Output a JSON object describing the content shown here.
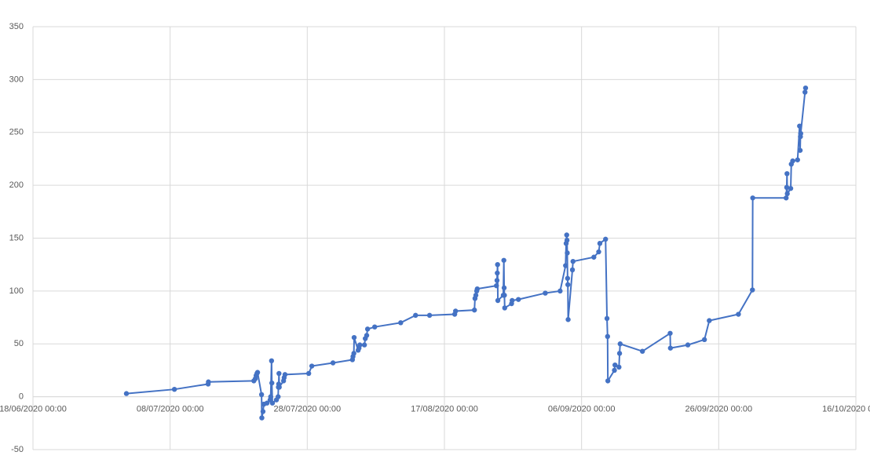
{
  "chart_data": {
    "type": "line",
    "x": [
      "01/07/2020 15:00",
      "08/07/2020 15:00",
      "13/07/2020 13:00",
      "13/07/2020 14:00",
      "20/07/2020 05:00",
      "20/07/2020 10:00",
      "20/07/2020 13:00",
      "20/07/2020 16:00",
      "20/07/2020 18:00",
      "21/07/2020 08:00",
      "21/07/2020 09:00",
      "21/07/2020 13:00",
      "21/07/2020 16:00",
      "22/07/2020 03:00",
      "22/07/2020 14:00",
      "22/07/2020 16:00",
      "22/07/2020 19:00",
      "22/07/2020 20:00",
      "22/07/2020 22:00",
      "23/07/2020 12:00",
      "23/07/2020 18:00",
      "23/07/2020 19:00",
      "23/07/2020 20:00",
      "23/07/2020 21:00",
      "23/07/2020 22:00",
      "24/07/2020 13:00",
      "24/07/2020 15:00",
      "24/07/2020 18:00",
      "28/07/2020 05:00",
      "28/07/2020 16:00",
      "31/07/2020 18:00",
      "03/08/2020 14:00",
      "03/08/2020 16:00",
      "03/08/2020 19:00",
      "03/08/2020 20:00",
      "04/08/2020 10:00",
      "04/08/2020 13:00",
      "04/08/2020 16:00",
      "05/08/2020 08:00",
      "05/08/2020 11:00",
      "05/08/2020 16:00",
      "05/08/2020 19:00",
      "06/08/2020 20:00",
      "10/08/2020 15:00",
      "12/08/2020 19:00",
      "14/08/2020 20:00",
      "18/08/2020 12:00",
      "18/08/2020 15:00",
      "21/08/2020 09:00",
      "21/08/2020 11:00",
      "21/08/2020 14:00",
      "21/08/2020 17:00",
      "21/08/2020 19:00",
      "24/08/2020 14:00",
      "24/08/2020 16:00",
      "24/08/2020 17:00",
      "24/08/2020 18:00",
      "24/08/2020 19:00",
      "25/08/2020 14:00",
      "25/08/2020 16:00",
      "25/08/2020 17:00",
      "25/08/2020 18:00",
      "25/08/2020 19:00",
      "26/08/2020 19:00",
      "26/08/2020 21:00",
      "27/08/2020 19:00",
      "31/08/2020 17:00",
      "02/09/2020 21:00",
      "03/09/2020 16:00",
      "03/09/2020 18:00",
      "03/09/2020 20:00",
      "03/09/2020 21:00",
      "03/09/2020 22:00",
      "03/09/2020 23:00",
      "04/09/2020 00:00",
      "04/09/2020 01:00",
      "04/09/2020 16:00",
      "04/09/2020 18:00",
      "07/09/2020 19:00",
      "08/09/2020 12:00",
      "08/09/2020 16:00",
      "09/09/2020 12:00",
      "09/09/2020 17:00",
      "09/09/2020 19:00",
      "09/09/2020 20:00",
      "10/09/2020 19:00",
      "10/09/2020 21:00",
      "11/09/2020 11:00",
      "11/09/2020 13:00",
      "11/09/2020 15:00",
      "14/09/2020 21:00",
      "18/09/2020 22:00",
      "18/09/2020 23:00",
      "21/09/2020 12:00",
      "23/09/2020 22:00",
      "24/09/2020 15:00",
      "28/09/2020 21:00",
      "30/09/2020 22:00",
      "30/09/2020 23:00",
      "05/10/2020 20:00",
      "05/10/2020 22:00",
      "05/10/2020 23:00",
      "06/10/2020 00:00",
      "06/10/2020 12:00",
      "06/10/2020 14:00",
      "06/10/2020 19:00",
      "07/10/2020 12:00",
      "07/10/2020 19:00",
      "07/10/2020 21:00",
      "07/10/2020 22:00",
      "07/10/2020 23:00",
      "08/10/2020 14:00",
      "08/10/2020 16:00"
    ],
    "series": [
      {
        "color": "#4472c4",
        "values": [
          3,
          7,
          12,
          14,
          15,
          17,
          20,
          22,
          23,
          2,
          -20,
          -14,
          -7,
          -6,
          -3,
          0,
          34,
          13,
          -6,
          -3,
          0,
          9,
          12,
          22,
          9,
          15,
          18,
          21,
          22,
          29,
          32,
          35,
          38,
          41,
          56,
          44,
          46,
          49,
          49,
          55,
          58,
          64,
          66,
          70,
          77,
          77,
          78,
          81,
          82,
          93,
          96,
          100,
          102,
          105,
          110,
          117,
          125,
          91,
          96,
          129,
          103,
          96,
          84,
          88,
          91,
          92,
          98,
          100,
          124,
          145,
          153,
          148,
          136,
          112,
          106,
          73,
          120,
          128,
          132,
          137,
          145,
          149,
          74,
          57,
          15,
          25,
          30,
          28,
          41,
          50,
          43,
          60,
          46,
          49,
          54,
          72,
          78,
          101,
          188,
          188,
          198,
          211,
          192,
          197,
          220,
          223,
          224,
          256,
          233,
          246,
          249,
          288,
          292
        ]
      }
    ],
    "xlim": [
      "18/06/2020 00:00",
      "16/10/2020 00:00"
    ],
    "xticks": [
      "18/06/2020 00:00",
      "08/07/2020 00:00",
      "28/07/2020 00:00",
      "17/08/2020 00:00",
      "06/09/2020 00:00",
      "26/09/2020 00:00",
      "16/10/2020 00:00"
    ],
    "ylim": [
      -50,
      350
    ],
    "yticks": [
      -50,
      0,
      50,
      100,
      150,
      200,
      250,
      300,
      350
    ],
    "grid": true
  }
}
